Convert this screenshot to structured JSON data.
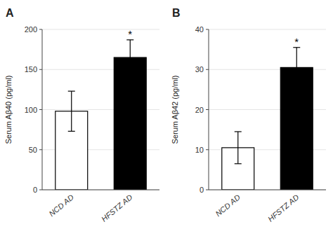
{
  "chart_data": [
    {
      "type": "bar",
      "title": "A",
      "categories": [
        "NCD AD",
        "HFSTZ AD"
      ],
      "values": [
        98,
        165
      ],
      "errors": [
        25,
        22
      ],
      "colors": [
        "white",
        "black"
      ],
      "ylabel": "Serum Aβ40 (pg/ml)",
      "ylim": [
        0,
        200
      ],
      "yticks": [
        0,
        50,
        100,
        150,
        200
      ],
      "annotations": [
        {
          "text": "*",
          "category": "HFSTZ AD"
        }
      ]
    },
    {
      "type": "bar",
      "title": "B",
      "categories": [
        "NCD AD",
        "HFSTZ AD"
      ],
      "values": [
        10.5,
        30.5
      ],
      "errors": [
        4,
        5
      ],
      "colors": [
        "white",
        "black"
      ],
      "ylabel": "Serum Aβ42 (pg/ml)",
      "ylim": [
        0,
        40
      ],
      "yticks": [
        0,
        10,
        20,
        30,
        40
      ],
      "annotations": [
        {
          "text": "*",
          "category": "HFSTZ AD"
        }
      ]
    }
  ]
}
